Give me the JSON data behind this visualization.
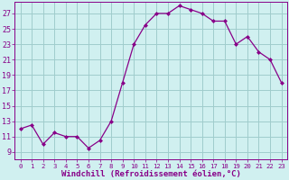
{
  "x": [
    0,
    1,
    2,
    3,
    4,
    5,
    6,
    7,
    8,
    9,
    10,
    11,
    12,
    13,
    14,
    15,
    16,
    17,
    18,
    19,
    20,
    21,
    22,
    23
  ],
  "y": [
    12,
    12.5,
    10,
    11.5,
    11,
    11,
    9.5,
    10.5,
    13,
    18,
    23,
    25.5,
    27,
    27,
    28,
    27.5,
    27,
    26,
    26,
    23,
    24,
    22,
    21,
    18
  ],
  "line_color": "#880088",
  "marker": "D",
  "marker_size": 2.0,
  "bg_color": "#d0f0f0",
  "grid_color": "#a0cccc",
  "xlabel": "Windchill (Refroidissement éolien,°C)",
  "xlabel_color": "#880088",
  "xlabel_fontsize": 6.5,
  "ylabel_ticks": [
    9,
    11,
    13,
    15,
    17,
    19,
    21,
    23,
    25,
    27
  ],
  "xtick_labels": [
    "0",
    "1",
    "2",
    "3",
    "4",
    "5",
    "6",
    "7",
    "8",
    "9",
    "10",
    "11",
    "12",
    "13",
    "14",
    "15",
    "16",
    "17",
    "18",
    "19",
    "20",
    "21",
    "22",
    "23"
  ],
  "ylim": [
    8.0,
    28.5
  ],
  "xlim": [
    -0.5,
    23.5
  ],
  "tick_color": "#880088",
  "ytick_fontsize": 6.0,
  "xtick_fontsize": 5.2,
  "spine_color": "#880088",
  "linewidth": 0.9
}
